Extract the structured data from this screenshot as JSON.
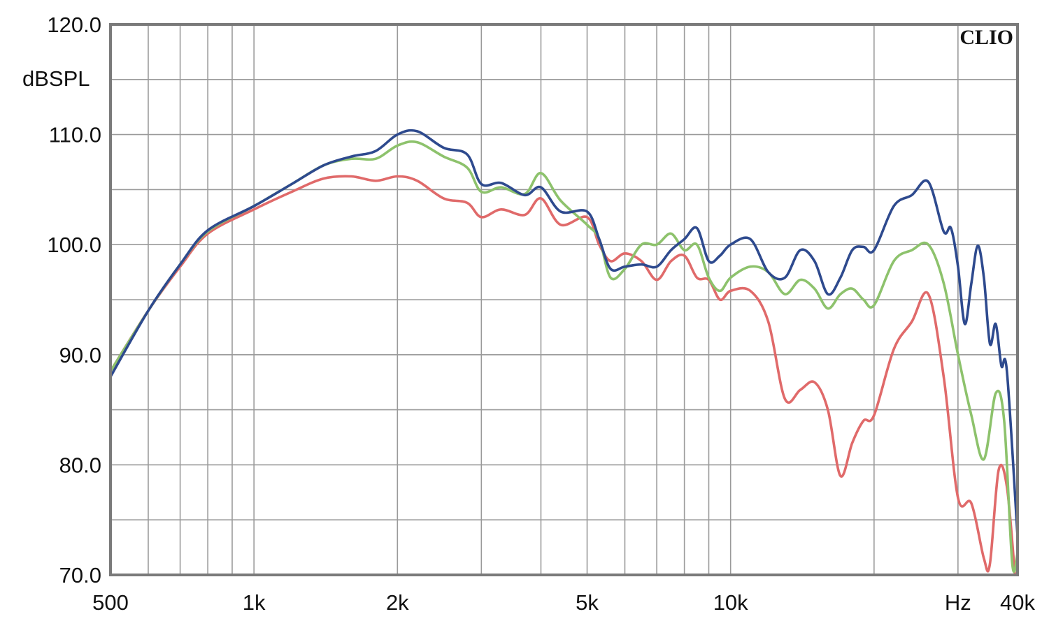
{
  "chart_data": {
    "type": "line",
    "title": "CLIO",
    "ylabel": "dBSPL",
    "xlabel": "Hz",
    "x_scale": "log",
    "xlim": [
      500,
      40000
    ],
    "ylim": [
      70,
      120
    ],
    "grid": true,
    "x_ticks": [
      {
        "value": 500,
        "label": "500"
      },
      {
        "value": 1000,
        "label": "1k"
      },
      {
        "value": 2000,
        "label": "2k"
      },
      {
        "value": 5000,
        "label": "5k"
      },
      {
        "value": 10000,
        "label": "10k"
      },
      {
        "value": 30000,
        "label": "Hz"
      },
      {
        "value": 40000,
        "label": "40k"
      }
    ],
    "y_ticks": [
      {
        "value": 120,
        "label": "120.0"
      },
      {
        "value": 110,
        "label": "110.0"
      },
      {
        "value": 100,
        "label": "100.0"
      },
      {
        "value": 90,
        "label": "90.0"
      },
      {
        "value": 80,
        "label": "80.0"
      },
      {
        "value": 70,
        "label": "70.0"
      }
    ],
    "x_minor_grid": [
      600,
      700,
      800,
      900,
      3000,
      4000,
      6000,
      7000,
      8000,
      9000,
      20000
    ],
    "y_minor_grid": [
      115,
      105,
      95,
      85,
      75
    ],
    "series": [
      {
        "color": "#e06a6a",
        "points": [
          [
            500,
            88.5
          ],
          [
            600,
            94.0
          ],
          [
            700,
            98.0
          ],
          [
            800,
            101.0
          ],
          [
            1000,
            103.2
          ],
          [
            1200,
            104.8
          ],
          [
            1400,
            106.0
          ],
          [
            1600,
            106.2
          ],
          [
            1800,
            105.8
          ],
          [
            2000,
            106.2
          ],
          [
            2200,
            105.8
          ],
          [
            2500,
            104.2
          ],
          [
            2800,
            103.8
          ],
          [
            3000,
            102.5
          ],
          [
            3300,
            103.2
          ],
          [
            3700,
            102.7
          ],
          [
            4000,
            104.2
          ],
          [
            4400,
            101.8
          ],
          [
            5000,
            102.5
          ],
          [
            5300,
            100.0
          ],
          [
            5600,
            98.5
          ],
          [
            6000,
            99.2
          ],
          [
            6500,
            98.5
          ],
          [
            7000,
            96.8
          ],
          [
            7500,
            98.5
          ],
          [
            8000,
            99.0
          ],
          [
            8500,
            97.0
          ],
          [
            9000,
            96.8
          ],
          [
            9500,
            95.0
          ],
          [
            10000,
            95.8
          ],
          [
            11000,
            95.8
          ],
          [
            12000,
            93.0
          ],
          [
            13000,
            86.0
          ],
          [
            14000,
            86.8
          ],
          [
            15000,
            87.5
          ],
          [
            16000,
            85.0
          ],
          [
            17000,
            79.0
          ],
          [
            18000,
            82.0
          ],
          [
            19000,
            84.0
          ],
          [
            20000,
            84.5
          ],
          [
            22000,
            90.5
          ],
          [
            24000,
            93.0
          ],
          [
            26000,
            95.5
          ],
          [
            28000,
            88.0
          ],
          [
            30000,
            77.0
          ],
          [
            32000,
            76.5
          ],
          [
            34000,
            71.5
          ],
          [
            35000,
            71.0
          ],
          [
            36500,
            79.5
          ],
          [
            38000,
            78.0
          ],
          [
            39500,
            70.0
          ]
        ]
      },
      {
        "color": "#8dc26c",
        "points": [
          [
            500,
            88.5
          ],
          [
            600,
            94.0
          ],
          [
            700,
            98.2
          ],
          [
            800,
            101.2
          ],
          [
            1000,
            103.5
          ],
          [
            1200,
            105.5
          ],
          [
            1400,
            107.2
          ],
          [
            1600,
            107.8
          ],
          [
            1800,
            107.8
          ],
          [
            2000,
            109.0
          ],
          [
            2200,
            109.3
          ],
          [
            2500,
            108.0
          ],
          [
            2800,
            107.0
          ],
          [
            3000,
            104.8
          ],
          [
            3300,
            105.2
          ],
          [
            3700,
            104.6
          ],
          [
            4000,
            106.5
          ],
          [
            4400,
            104.0
          ],
          [
            5000,
            101.8
          ],
          [
            5300,
            100.5
          ],
          [
            5600,
            97.0
          ],
          [
            6000,
            97.8
          ],
          [
            6500,
            100.0
          ],
          [
            7000,
            100.0
          ],
          [
            7500,
            101.0
          ],
          [
            8000,
            99.5
          ],
          [
            8500,
            100.0
          ],
          [
            9000,
            97.0
          ],
          [
            9500,
            95.8
          ],
          [
            10000,
            97.0
          ],
          [
            11000,
            98.0
          ],
          [
            12000,
            97.5
          ],
          [
            13000,
            95.5
          ],
          [
            14000,
            96.8
          ],
          [
            15000,
            96.0
          ],
          [
            16000,
            94.2
          ],
          [
            17000,
            95.5
          ],
          [
            18000,
            96.0
          ],
          [
            19000,
            95.0
          ],
          [
            20000,
            94.5
          ],
          [
            22000,
            98.5
          ],
          [
            24000,
            99.5
          ],
          [
            26000,
            100.0
          ],
          [
            28000,
            96.5
          ],
          [
            30000,
            90.0
          ],
          [
            32000,
            84.5
          ],
          [
            34000,
            80.5
          ],
          [
            36000,
            86.5
          ],
          [
            37500,
            84.0
          ],
          [
            39000,
            71.0
          ],
          [
            40000,
            72.0
          ]
        ]
      },
      {
        "color": "#2e4a8e",
        "points": [
          [
            500,
            88.0
          ],
          [
            600,
            94.0
          ],
          [
            700,
            98.2
          ],
          [
            800,
            101.3
          ],
          [
            1000,
            103.5
          ],
          [
            1200,
            105.5
          ],
          [
            1400,
            107.2
          ],
          [
            1600,
            108.0
          ],
          [
            1800,
            108.5
          ],
          [
            2000,
            110.0
          ],
          [
            2200,
            110.3
          ],
          [
            2500,
            108.8
          ],
          [
            2800,
            108.2
          ],
          [
            3000,
            105.5
          ],
          [
            3300,
            105.6
          ],
          [
            3700,
            104.5
          ],
          [
            4000,
            105.2
          ],
          [
            4400,
            103.0
          ],
          [
            5000,
            103.0
          ],
          [
            5300,
            100.5
          ],
          [
            5600,
            97.8
          ],
          [
            6000,
            98.0
          ],
          [
            6500,
            98.2
          ],
          [
            7000,
            98.0
          ],
          [
            7500,
            99.5
          ],
          [
            8000,
            100.5
          ],
          [
            8500,
            101.5
          ],
          [
            9000,
            98.5
          ],
          [
            9500,
            99.0
          ],
          [
            10000,
            100.0
          ],
          [
            11000,
            100.5
          ],
          [
            12000,
            97.5
          ],
          [
            13000,
            97.0
          ],
          [
            14000,
            99.5
          ],
          [
            15000,
            98.5
          ],
          [
            16000,
            95.5
          ],
          [
            17000,
            97.0
          ],
          [
            18000,
            99.5
          ],
          [
            19000,
            99.8
          ],
          [
            20000,
            99.5
          ],
          [
            22000,
            103.5
          ],
          [
            24000,
            104.5
          ],
          [
            26000,
            105.7
          ],
          [
            28000,
            101.2
          ],
          [
            29000,
            101.5
          ],
          [
            30000,
            98.0
          ],
          [
            31000,
            92.8
          ],
          [
            32000,
            96.5
          ],
          [
            33000,
            99.9
          ],
          [
            34000,
            97.0
          ],
          [
            35000,
            91.0
          ],
          [
            36000,
            92.8
          ],
          [
            37000,
            89.0
          ],
          [
            38000,
            88.5
          ],
          [
            40000,
            73.5
          ]
        ]
      }
    ]
  }
}
